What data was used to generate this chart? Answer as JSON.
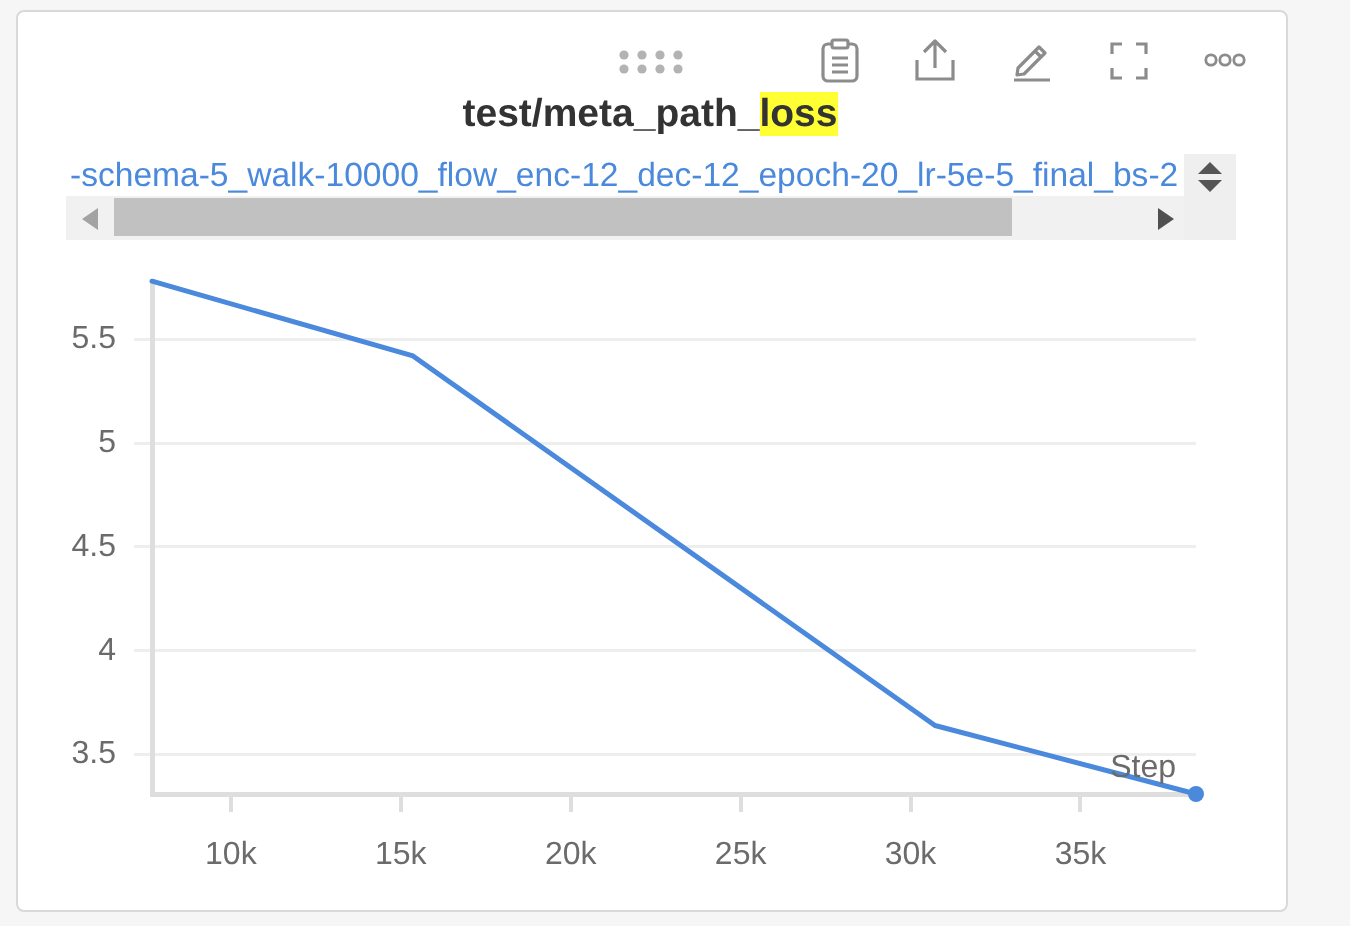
{
  "chart_data": {
    "type": "line",
    "title": "test/meta_path_loss",
    "xlabel": "Step",
    "x": [
      7680,
      15360,
      30720,
      38400
    ],
    "series": [
      {
        "name": "-schema-5_walk-10000_flow_enc-12_dec-12_epoch-20_lr-5e-5_final_bs-2",
        "color": "#4a89dc",
        "values": [
          5.78,
          5.42,
          3.64,
          3.31
        ]
      },
      {
        "type": "scatter",
        "x": [
          38400
        ],
        "color": "#4a89dc",
        "values": [
          3.31
        ],
        "marker": "circle"
      }
    ],
    "xlim": [
      7680,
      38400
    ],
    "ylim": [
      3.31,
      5.78
    ],
    "xticks": [
      {
        "value": 10000,
        "label": "10k"
      },
      {
        "value": 15000,
        "label": "15k"
      },
      {
        "value": 20000,
        "label": "20k"
      },
      {
        "value": 25000,
        "label": "25k"
      },
      {
        "value": 30000,
        "label": "30k"
      },
      {
        "value": 35000,
        "label": "35k"
      }
    ],
    "yticks": [
      3.5,
      4,
      4.5,
      5,
      5.5
    ],
    "grid": "y",
    "legend": "top"
  }
}
